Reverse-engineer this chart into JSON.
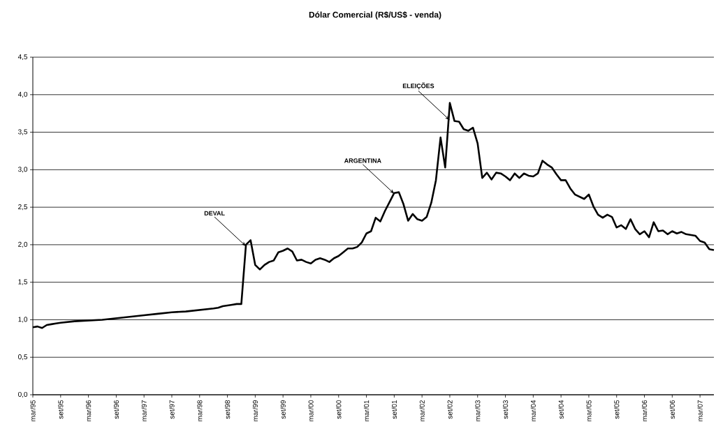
{
  "chart_data": {
    "type": "line",
    "title": "Dólar Comercial (R$/US$ - venda)",
    "x": [
      "1995-03",
      "1995-04",
      "1995-05",
      "1995-06",
      "1995-07",
      "1995-08",
      "1995-09",
      "1995-12",
      "1996-03",
      "1996-06",
      "1996-09",
      "1996-12",
      "1997-03",
      "1997-06",
      "1997-09",
      "1997-12",
      "1998-03",
      "1998-06",
      "1998-07",
      "1998-08",
      "1998-09",
      "1998-10",
      "1998-11",
      "1998-12",
      "1999-01",
      "1999-02",
      "1999-03",
      "1999-04",
      "1999-05",
      "1999-06",
      "1999-07",
      "1999-08",
      "1999-09",
      "1999-10",
      "1999-11",
      "1999-12",
      "2000-01",
      "2000-02",
      "2000-03",
      "2000-04",
      "2000-05",
      "2000-06",
      "2000-07",
      "2000-08",
      "2000-09",
      "2000-10",
      "2000-11",
      "2000-12",
      "2001-01",
      "2001-02",
      "2001-03",
      "2001-04",
      "2001-05",
      "2001-06",
      "2001-07",
      "2001-08",
      "2001-09",
      "2001-10",
      "2001-11",
      "2001-12",
      "2002-01",
      "2002-02",
      "2002-03",
      "2002-04",
      "2002-05",
      "2002-06",
      "2002-07",
      "2002-08",
      "2002-09",
      "2002-10",
      "2002-11",
      "2002-12",
      "2003-01",
      "2003-02",
      "2003-03",
      "2003-04",
      "2003-05",
      "2003-06",
      "2003-07",
      "2003-08",
      "2003-09",
      "2003-10",
      "2003-11",
      "2003-12",
      "2004-01",
      "2004-02",
      "2004-03",
      "2004-04",
      "2004-05",
      "2004-06",
      "2004-07",
      "2004-08",
      "2004-09",
      "2004-10",
      "2004-11",
      "2004-12",
      "2005-01",
      "2005-02",
      "2005-03",
      "2005-04",
      "2005-05",
      "2005-06",
      "2005-07",
      "2005-08",
      "2005-09",
      "2005-10",
      "2005-11",
      "2005-12",
      "2006-01",
      "2006-02",
      "2006-03",
      "2006-04",
      "2006-05",
      "2006-06",
      "2006-07",
      "2006-08",
      "2006-09",
      "2006-10",
      "2006-11",
      "2006-12",
      "2007-01",
      "2007-02",
      "2007-03",
      "2007-04",
      "2007-05",
      "2007-06"
    ],
    "series": [
      {
        "color": "#000000",
        "values": [
          0.9,
          0.91,
          0.89,
          0.93,
          0.94,
          0.95,
          0.96,
          0.98,
          0.99,
          1.0,
          1.02,
          1.04,
          1.06,
          1.08,
          1.1,
          1.11,
          1.13,
          1.15,
          1.16,
          1.18,
          1.19,
          1.2,
          1.21,
          1.21,
          2.0,
          2.06,
          1.73,
          1.67,
          1.73,
          1.77,
          1.79,
          1.9,
          1.92,
          1.95,
          1.91,
          1.79,
          1.8,
          1.77,
          1.75,
          1.8,
          1.82,
          1.8,
          1.77,
          1.82,
          1.85,
          1.9,
          1.95,
          1.95,
          1.97,
          2.03,
          2.15,
          2.18,
          2.36,
          2.31,
          2.45,
          2.57,
          2.69,
          2.7,
          2.54,
          2.32,
          2.41,
          2.34,
          2.32,
          2.37,
          2.56,
          2.86,
          3.43,
          3.03,
          3.89,
          3.65,
          3.64,
          3.54,
          3.52,
          3.56,
          3.35,
          2.89,
          2.96,
          2.87,
          2.96,
          2.95,
          2.91,
          2.86,
          2.95,
          2.89,
          2.95,
          2.92,
          2.91,
          2.95,
          3.12,
          3.07,
          3.03,
          2.94,
          2.86,
          2.86,
          2.75,
          2.67,
          2.64,
          2.61,
          2.67,
          2.51,
          2.4,
          2.36,
          2.4,
          2.37,
          2.23,
          2.26,
          2.21,
          2.34,
          2.21,
          2.14,
          2.18,
          2.1,
          2.3,
          2.18,
          2.19,
          2.14,
          2.18,
          2.15,
          2.17,
          2.14,
          2.13,
          2.12,
          2.05,
          2.03,
          1.94,
          1.93
        ]
      }
    ],
    "xlim": [
      "1995-03",
      "2007-06"
    ],
    "xticks": [
      {
        "value": "1995-03",
        "label": "mar/95"
      },
      {
        "value": "1995-09",
        "label": "set/95"
      },
      {
        "value": "1996-03",
        "label": "mar/96"
      },
      {
        "value": "1996-09",
        "label": "set/96"
      },
      {
        "value": "1997-03",
        "label": "mar/97"
      },
      {
        "value": "1997-09",
        "label": "set/97"
      },
      {
        "value": "1998-03",
        "label": "mar/98"
      },
      {
        "value": "1998-09",
        "label": "set/98"
      },
      {
        "value": "1999-03",
        "label": "mar/99"
      },
      {
        "value": "1999-09",
        "label": "set/99"
      },
      {
        "value": "2000-03",
        "label": "mar/00"
      },
      {
        "value": "2000-09",
        "label": "set/00"
      },
      {
        "value": "2001-03",
        "label": "mar/01"
      },
      {
        "value": "2001-09",
        "label": "set/01"
      },
      {
        "value": "2002-03",
        "label": "mar/02"
      },
      {
        "value": "2002-09",
        "label": "set/02"
      },
      {
        "value": "2003-03",
        "label": "mar/03"
      },
      {
        "value": "2003-09",
        "label": "set/03"
      },
      {
        "value": "2004-03",
        "label": "mar/04"
      },
      {
        "value": "2004-09",
        "label": "set/04"
      },
      {
        "value": "2005-03",
        "label": "mar/05"
      },
      {
        "value": "2005-09",
        "label": "set/05"
      },
      {
        "value": "2006-03",
        "label": "mar/06"
      },
      {
        "value": "2006-09",
        "label": "set/06"
      },
      {
        "value": "2007-03",
        "label": "mar/07"
      }
    ],
    "ylim": [
      0,
      4.5
    ],
    "yticks": [
      {
        "value": 0,
        "label": "0,0"
      },
      {
        "value": 0.5,
        "label": "0,5"
      },
      {
        "value": 1,
        "label": "1,0"
      },
      {
        "value": 1.5,
        "label": "1,5"
      },
      {
        "value": 2,
        "label": "2,0"
      },
      {
        "value": 2.5,
        "label": "2,5"
      },
      {
        "value": 3,
        "label": "3,0"
      },
      {
        "value": 3.5,
        "label": "3,5"
      },
      {
        "value": 4,
        "label": "4,0"
      },
      {
        "value": 4.5,
        "label": "4,5"
      }
    ],
    "grid": "y",
    "marker": "none",
    "line_style": "solid",
    "annotations": [
      {
        "text": "DEVAL",
        "x": "1999-01",
        "y": 1.98
      },
      {
        "text": "ARGENTINA",
        "x": "2001-09",
        "y": 2.68
      },
      {
        "text": "ELEIÇÕES",
        "x": "2002-09",
        "y": 3.66
      }
    ]
  }
}
